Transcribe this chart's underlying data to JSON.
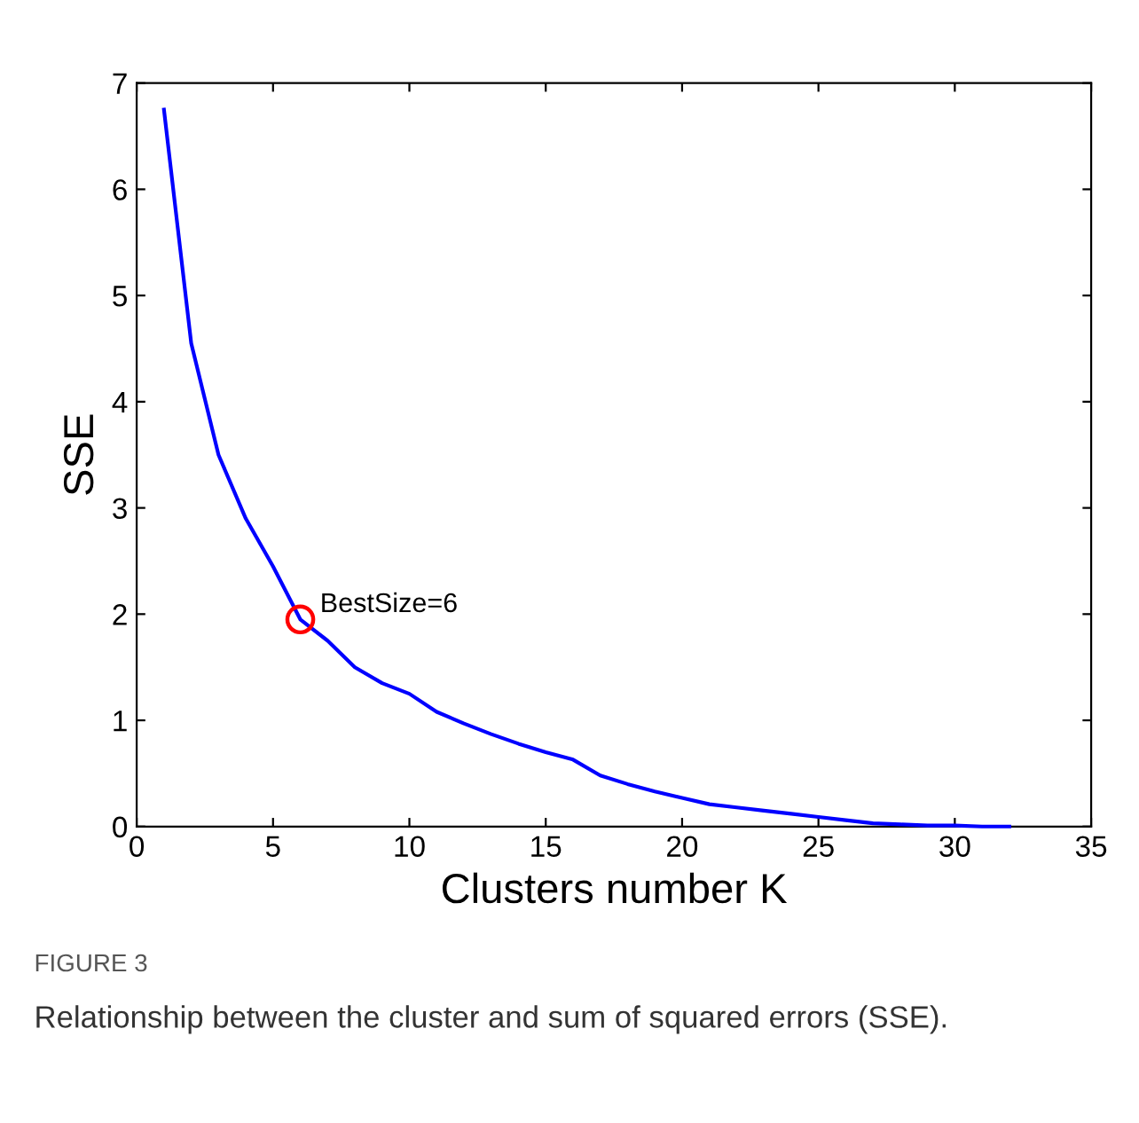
{
  "chart_data": {
    "type": "line",
    "xlabel": "Clusters number K",
    "ylabel": "SSE",
    "xlim": [
      0,
      35
    ],
    "xticks": [
      0,
      5,
      10,
      15,
      20,
      25,
      30,
      35
    ],
    "ylim": [
      0,
      7
    ],
    "yticks": [
      0,
      1,
      2,
      3,
      4,
      5,
      6,
      7
    ],
    "grid": false,
    "legend": false,
    "series": [
      {
        "color": "#0000ff",
        "marker": "none",
        "line_style": "solid",
        "x": [
          1,
          2,
          3,
          4,
          5,
          6,
          7,
          8,
          9,
          10,
          11,
          12,
          13,
          14,
          15,
          16,
          17,
          18,
          19,
          20,
          21,
          22,
          23,
          24,
          25,
          26,
          27,
          28,
          29,
          30,
          31,
          32
        ],
        "values": [
          6.75,
          4.55,
          3.5,
          2.9,
          2.45,
          1.95,
          1.75,
          1.5,
          1.35,
          1.25,
          1.08,
          0.97,
          0.87,
          0.78,
          0.7,
          0.63,
          0.48,
          0.4,
          0.33,
          0.27,
          0.21,
          0.18,
          0.15,
          0.12,
          0.09,
          0.06,
          0.03,
          0.02,
          0.01,
          0.01,
          0.0,
          0.0
        ]
      },
      {
        "type": "scatter",
        "color": "#ff0000",
        "marker": "circle",
        "x": [
          6
        ],
        "values": [
          1.95
        ]
      }
    ],
    "annotations": [
      {
        "text": "BestSize=6",
        "x": 6,
        "y": 1.95
      },
      "FIGURE 3",
      "Relationship between the cluster and sum of squared errors (SSE)."
    ]
  }
}
